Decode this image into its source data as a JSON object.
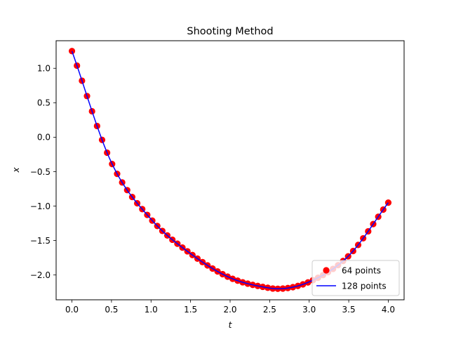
{
  "chart_data": {
    "type": "line",
    "title": "Shooting Method",
    "xlabel": "t",
    "ylabel": "x",
    "xlim": [
      -0.2,
      4.2
    ],
    "ylim": [
      -2.36,
      1.4
    ],
    "x_ticks": [
      0.0,
      0.5,
      1.0,
      1.5,
      2.0,
      2.5,
      3.0,
      3.5,
      4.0
    ],
    "x_tick_labels": [
      "0.0",
      "0.5",
      "1.0",
      "1.5",
      "2.0",
      "2.5",
      "3.0",
      "3.5",
      "4.0"
    ],
    "y_ticks": [
      1.0,
      0.5,
      0.0,
      -0.5,
      -1.0,
      -1.5,
      -2.0
    ],
    "y_tick_labels": [
      "1.0",
      "0.5",
      "0.0",
      "−0.5",
      "−1.0",
      "−1.5",
      "−2.0"
    ],
    "grid": false,
    "legend_position": "lower-right",
    "series": [
      {
        "name": "64 points",
        "style": "markers",
        "color": "#ff0000",
        "x_start": 0.0,
        "x_end": 4.0,
        "num_points": 64,
        "key_points": [
          [
            0.0,
            1.25
          ],
          [
            0.5,
            -0.37
          ],
          [
            1.0,
            -1.19
          ],
          [
            1.5,
            -1.69
          ],
          [
            2.0,
            -2.04
          ],
          [
            2.5,
            -2.19
          ],
          [
            2.6,
            -2.2
          ],
          [
            3.0,
            -2.1
          ],
          [
            3.5,
            -1.72
          ],
          [
            4.0,
            -0.95
          ]
        ]
      },
      {
        "name": "128 points",
        "style": "line",
        "color": "#0000ff",
        "x_start": 0.0,
        "x_end": 4.0,
        "num_points": 128,
        "key_points": [
          [
            0.0,
            1.25
          ],
          [
            0.5,
            -0.37
          ],
          [
            1.0,
            -1.19
          ],
          [
            1.5,
            -1.69
          ],
          [
            2.0,
            -2.04
          ],
          [
            2.5,
            -2.19
          ],
          [
            2.6,
            -2.2
          ],
          [
            3.0,
            -2.1
          ],
          [
            3.5,
            -1.72
          ],
          [
            4.0,
            -0.95
          ]
        ]
      }
    ]
  }
}
